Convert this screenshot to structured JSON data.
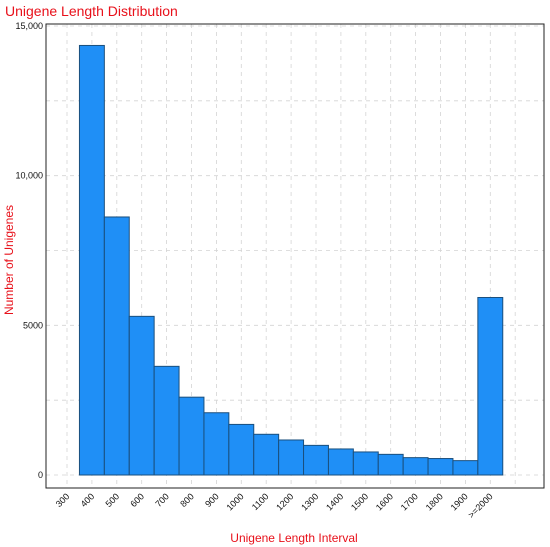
{
  "chart_data": {
    "type": "bar",
    "title": "Unigene Length Distribution",
    "xlabel": "Unigene Length Interval",
    "ylabel": "Number of Unigenes",
    "x_tick_labels": [
      "300",
      "400",
      "500",
      "600",
      "700",
      "800",
      "900",
      "1000",
      "1100",
      "1200",
      "1300",
      "1400",
      "1500",
      "1600",
      "1700",
      "1800",
      "1900",
      ">=2000"
    ],
    "y_tick_labels": [
      "0",
      "5000",
      "10,000",
      "15,000"
    ],
    "y_tick_values": [
      0,
      5000,
      10000,
      15000
    ],
    "ylim": [
      0,
      15000
    ],
    "bars": [
      {
        "x": 400,
        "value": 14350
      },
      {
        "x": 500,
        "value": 8620
      },
      {
        "x": 600,
        "value": 5300
      },
      {
        "x": 700,
        "value": 3630
      },
      {
        "x": 800,
        "value": 2600
      },
      {
        "x": 900,
        "value": 2080
      },
      {
        "x": 1000,
        "value": 1690
      },
      {
        "x": 1100,
        "value": 1360
      },
      {
        "x": 1200,
        "value": 1170
      },
      {
        "x": 1300,
        "value": 990
      },
      {
        "x": 1400,
        "value": 870
      },
      {
        "x": 1500,
        "value": 770
      },
      {
        "x": 1600,
        "value": 690
      },
      {
        "x": 1700,
        "value": 580
      },
      {
        "x": 1800,
        "value": 550
      },
      {
        "x": 1900,
        "value": 480
      },
      {
        "x": ">=2000",
        "value": 5930
      }
    ],
    "grid": true,
    "colors": {
      "bar": "#1f8ff6",
      "bar_edge": "#1a4f7d",
      "title": "#e8101a"
    }
  }
}
